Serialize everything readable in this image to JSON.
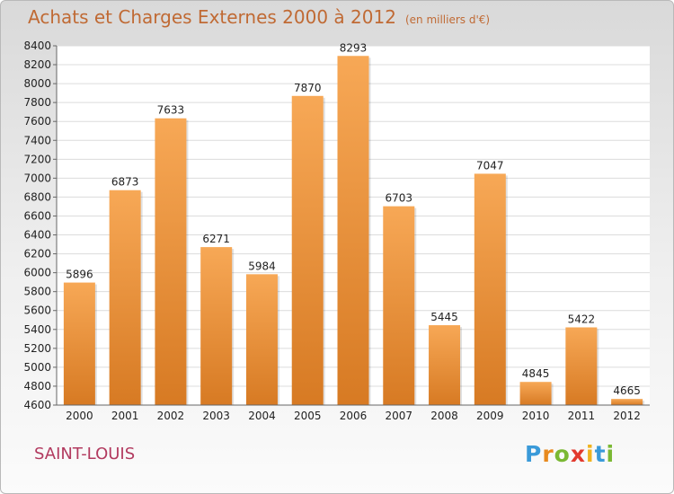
{
  "header": {
    "title": "Achats et Charges Externes 2000 à 2012",
    "unit_note": "(en milliers d'€)"
  },
  "footer": {
    "city": "SAINT-LOUIS",
    "logo_text": "Proxiti",
    "logo_colors": [
      "#3a9ad9",
      "#e88a1f",
      "#7ab833",
      "#e23a2e",
      "#f0b31e",
      "#3a9ad9",
      "#7ab833"
    ]
  },
  "colors": {
    "title": "#c06a34",
    "city": "#b23a5f",
    "bar_top": "#f7a856",
    "bar_bottom": "#d77a23"
  },
  "chart_data": {
    "type": "bar",
    "title": "Achats et Charges Externes 2000 à 2012",
    "subtitle": "(en milliers d'€)",
    "categories": [
      "2000",
      "2001",
      "2002",
      "2003",
      "2004",
      "2005",
      "2006",
      "2007",
      "2008",
      "2009",
      "2010",
      "2011",
      "2012"
    ],
    "values": [
      5896,
      6873,
      7633,
      6271,
      5984,
      7870,
      8293,
      6703,
      5445,
      7047,
      4845,
      5422,
      4665
    ],
    "ylim": [
      4600,
      8400
    ],
    "yticks": [
      4600,
      4800,
      5000,
      5200,
      5400,
      5600,
      5800,
      6000,
      6200,
      6400,
      6600,
      6800,
      7000,
      7200,
      7400,
      7600,
      7800,
      8000,
      8200,
      8400
    ],
    "grid": true,
    "xlabel": "",
    "ylabel": ""
  }
}
